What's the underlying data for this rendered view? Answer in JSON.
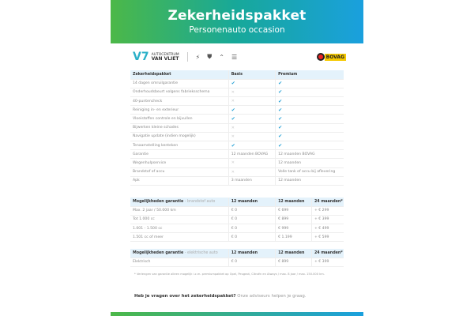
{
  "header": {
    "title": "Zekerheidspakket",
    "subtitle": "Personenauto occasion"
  },
  "logos": {
    "dealer_line1": "AUTOCENTRUM",
    "dealer_line2": "VAN VLIET",
    "brands": [
      "opel-icon",
      "peugeot-icon",
      "citroen-icon",
      "ds-icon"
    ],
    "bovag": "BOVAG"
  },
  "packages": {
    "header": [
      "Zekerheidspakket",
      "Basis",
      "Premium"
    ],
    "rows": [
      [
        "14 dagen omruilgarantie",
        "check",
        "check"
      ],
      [
        "Onderhoudsbeurt volgens fabrieksschema",
        "cross",
        "check"
      ],
      [
        "40-puntencheck",
        "cross",
        "check"
      ],
      [
        "Reiniging in- en exterieur",
        "check",
        "check"
      ],
      [
        "Vloeistoffen controle en bijvullen",
        "check",
        "check"
      ],
      [
        "Bijwerken kleine schades",
        "cross",
        "check"
      ],
      [
        "Navigatie update (indien mogelijk)",
        "cross",
        "check"
      ],
      [
        "Tenaamstelling kenteken",
        "check",
        "check"
      ],
      [
        "Garantie",
        "12 maanden BOVAG",
        "12 maanden BOVAG"
      ],
      [
        "Wegenhulpservice",
        "cross",
        "12 maanden"
      ],
      [
        "Brandstof of accu",
        "cross",
        "Volle tank of accu bij aflevering"
      ],
      [
        "Apk",
        "3 maanden",
        "12 maanden"
      ]
    ]
  },
  "fuel": {
    "header": [
      "Mogelijkheden garantie",
      " - brandstof auto",
      "12 maanden",
      "12 maanden",
      "24 maanden*"
    ],
    "rows": [
      [
        "Max. 2 jaar / 50.000 km",
        "€ 0",
        "€ 699",
        "+ € 299"
      ],
      [
        "Tot 1.000 cc",
        "€ 0",
        "€ 899",
        "+ € 399"
      ],
      [
        "1.001 - 1.500 cc",
        "€ 0",
        "€ 999",
        "+ € 499"
      ],
      [
        "1.501 cc of meer",
        "€ 0",
        "€ 1.199",
        "+ € 599"
      ]
    ]
  },
  "electric": {
    "header": [
      "Mogelijkheden garantie",
      " - elektrische auto",
      "12 maanden",
      "12 maanden",
      "24 maanden*"
    ],
    "rows": [
      [
        "Elektrisch",
        "€ 0",
        "€ 899",
        "+ € 399"
      ]
    ]
  },
  "footnote": "* Verlengen van garantie alleen mogelijk i.c.m. premiumpakket op Opel, Peugeot, Citroën en Aiways / max. 8 jaar / max. 150.000 km.",
  "question": {
    "bold": "Heb je vragen over het zekerheidspakket?",
    "rest": " Onze adviseurs helpen je graag."
  },
  "colors": {
    "gradient_start": "#4cb848",
    "gradient_end": "#1aa0de",
    "check": "#2aa3d6",
    "header_row": "#e4f2fb"
  }
}
